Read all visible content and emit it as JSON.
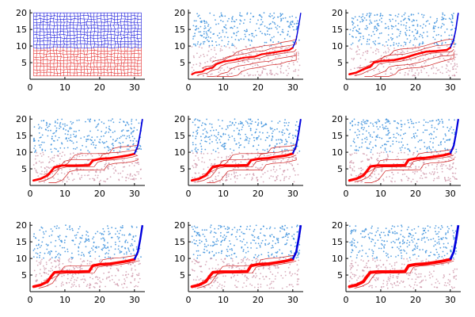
{
  "colors": {
    "upper_mesh": "#1a1adb",
    "lower_mesh": "#e53030",
    "points": "#3a8fdc",
    "path_red": "#ff0000",
    "path_blue": "#0000dd",
    "axis": "#000000"
  },
  "chart_data": {
    "type": "panel-grid",
    "layout": {
      "rows": 3,
      "cols": 3
    },
    "grid": false,
    "xlim": [
      0,
      33
    ],
    "ylim": [
      0,
      21
    ],
    "xticks": [
      0,
      10,
      20,
      30
    ],
    "yticks": [
      5,
      10,
      15,
      20
    ],
    "xtick_labels": [
      "0",
      "10",
      "20",
      "30"
    ],
    "ytick_labels": [
      "5",
      "10",
      "15",
      "20"
    ],
    "domain": {
      "x": [
        1,
        32
      ],
      "y": [
        1,
        20
      ]
    },
    "interface_y": 10,
    "panels": [
      {
        "kind": "mesh",
        "mesh": {
          "nx": 32,
          "ny": 20,
          "upper_color": "blue",
          "lower_color": "red"
        }
      },
      {
        "kind": "flow",
        "path_width": 2.2,
        "branch_count": 5,
        "main_path": [
          [
            1,
            1.5
          ],
          [
            2,
            2
          ],
          [
            4,
            2.3
          ],
          [
            5,
            3
          ],
          [
            7,
            3.5
          ],
          [
            8,
            4.5
          ],
          [
            10,
            5.3
          ],
          [
            13,
            5.8
          ],
          [
            16,
            6.5
          ],
          [
            19,
            6.8
          ],
          [
            21,
            7.5
          ],
          [
            24,
            8
          ],
          [
            27,
            8.5
          ],
          [
            29,
            8.8
          ],
          [
            30,
            9.5
          ],
          [
            31,
            12
          ],
          [
            31.5,
            15
          ],
          [
            32,
            18
          ],
          [
            32.3,
            20
          ]
        ]
      },
      {
        "kind": "flow",
        "path_width": 2.6,
        "branch_count": 5,
        "main_path": [
          [
            1,
            1.5
          ],
          [
            3,
            2
          ],
          [
            5,
            3
          ],
          [
            7,
            3.8
          ],
          [
            8,
            5
          ],
          [
            10,
            5.5
          ],
          [
            14,
            5.8
          ],
          [
            17,
            6.5
          ],
          [
            20,
            7.5
          ],
          [
            23,
            8.3
          ],
          [
            26,
            8.5
          ],
          [
            29,
            8.8
          ],
          [
            30,
            9.5
          ],
          [
            31,
            12
          ],
          [
            31.6,
            15
          ],
          [
            32,
            18
          ],
          [
            32.3,
            20
          ]
        ]
      },
      {
        "kind": "flow",
        "path_width": 2.8,
        "branch_count": 4,
        "main_path": [
          [
            1,
            1.5
          ],
          [
            3,
            2
          ],
          [
            5,
            3
          ],
          [
            6,
            4.2
          ],
          [
            7,
            5.5
          ],
          [
            9,
            6
          ],
          [
            13,
            6
          ],
          [
            17,
            6.1
          ],
          [
            18,
            7.5
          ],
          [
            20,
            8
          ],
          [
            23,
            8.2
          ],
          [
            25,
            8.5
          ],
          [
            28,
            9
          ],
          [
            30,
            9.5
          ],
          [
            31,
            12
          ],
          [
            31.7,
            16
          ],
          [
            32,
            18
          ],
          [
            32.3,
            20
          ]
        ]
      },
      {
        "kind": "flow",
        "path_width": 3,
        "branch_count": 4,
        "main_path": [
          [
            1,
            1.5
          ],
          [
            3,
            2
          ],
          [
            5,
            3
          ],
          [
            6,
            4.3
          ],
          [
            7,
            5.6
          ],
          [
            9,
            6
          ],
          [
            13,
            6
          ],
          [
            17,
            6.1
          ],
          [
            18,
            7.6
          ],
          [
            20,
            8
          ],
          [
            23,
            8.2
          ],
          [
            25,
            8.6
          ],
          [
            28,
            9
          ],
          [
            30,
            9.6
          ],
          [
            31,
            12
          ],
          [
            31.7,
            16
          ],
          [
            32,
            18
          ],
          [
            32.3,
            20
          ]
        ]
      },
      {
        "kind": "flow",
        "path_width": 3.2,
        "branch_count": 3,
        "main_path": [
          [
            1,
            1.5
          ],
          [
            3,
            2
          ],
          [
            5,
            3
          ],
          [
            6,
            4.3
          ],
          [
            7,
            5.7
          ],
          [
            9,
            6
          ],
          [
            13,
            6
          ],
          [
            17,
            6.1
          ],
          [
            18,
            7.7
          ],
          [
            20,
            8.1
          ],
          [
            23,
            8.3
          ],
          [
            25,
            8.6
          ],
          [
            28,
            9.1
          ],
          [
            30,
            9.6
          ],
          [
            31,
            12
          ],
          [
            31.7,
            16
          ],
          [
            32,
            18
          ],
          [
            32.3,
            20
          ]
        ]
      },
      {
        "kind": "flow",
        "path_width": 3.4,
        "branch_count": 2,
        "main_path": [
          [
            1,
            1.5
          ],
          [
            3,
            2
          ],
          [
            5,
            3
          ],
          [
            6,
            4.5
          ],
          [
            7,
            5.8
          ],
          [
            9,
            6
          ],
          [
            13,
            6
          ],
          [
            17,
            6.1
          ],
          [
            18,
            7.8
          ],
          [
            20,
            8.2
          ],
          [
            23,
            8.4
          ],
          [
            25,
            8.7
          ],
          [
            28,
            9.2
          ],
          [
            30,
            9.7
          ],
          [
            31,
            12
          ],
          [
            31.7,
            16
          ],
          [
            32,
            18
          ],
          [
            32.3,
            20
          ]
        ]
      },
      {
        "kind": "flow",
        "path_width": 3.6,
        "branch_count": 2,
        "main_path": [
          [
            1,
            1.5
          ],
          [
            3,
            2
          ],
          [
            5,
            3
          ],
          [
            6,
            4.5
          ],
          [
            7,
            5.8
          ],
          [
            9,
            6
          ],
          [
            13,
            6
          ],
          [
            17,
            6.1
          ],
          [
            18,
            7.8
          ],
          [
            20,
            8.2
          ],
          [
            23,
            8.4
          ],
          [
            25,
            8.7
          ],
          [
            28,
            9.2
          ],
          [
            30,
            9.7
          ],
          [
            31,
            12
          ],
          [
            31.7,
            16
          ],
          [
            32,
            18
          ],
          [
            32.3,
            20
          ]
        ]
      },
      {
        "kind": "flow",
        "path_width": 3.8,
        "branch_count": 1,
        "main_path": [
          [
            1,
            1.5
          ],
          [
            3,
            2
          ],
          [
            5,
            3
          ],
          [
            6,
            4.5
          ],
          [
            7,
            5.8
          ],
          [
            9,
            6
          ],
          [
            13,
            6
          ],
          [
            17,
            6.1
          ],
          [
            18,
            7.8
          ],
          [
            20,
            8.2
          ],
          [
            23,
            8.4
          ],
          [
            25,
            8.7
          ],
          [
            28,
            9.2
          ],
          [
            30,
            9.7
          ],
          [
            31,
            12
          ],
          [
            31.7,
            16
          ],
          [
            32,
            18
          ],
          [
            32.3,
            20
          ]
        ]
      }
    ]
  }
}
